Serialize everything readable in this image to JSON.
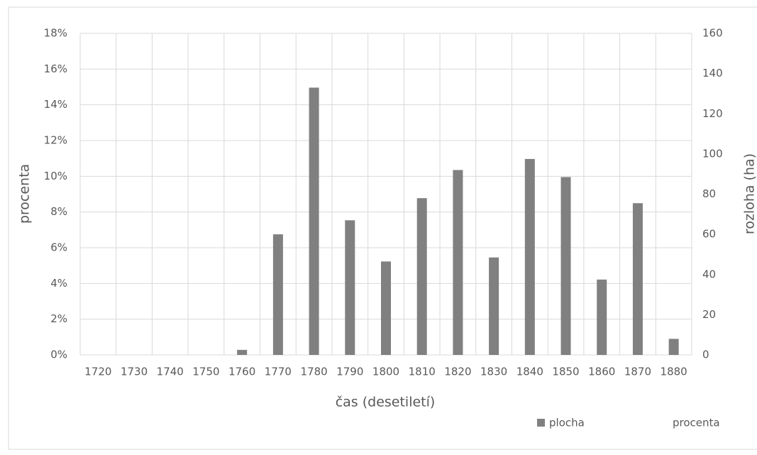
{
  "chart_data": {
    "type": "bar",
    "x_label": "čas (desetiletí)",
    "y_label": "procenta",
    "y2_label": "rozloha (ha)",
    "categories": [
      1720,
      1730,
      1740,
      1750,
      1760,
      1770,
      1780,
      1790,
      1800,
      1810,
      1820,
      1830,
      1840,
      1850,
      1860,
      1870,
      1880
    ],
    "series": [
      {
        "name": "plocha",
        "color": "#808080",
        "axis": "y2",
        "values": [
          0,
          0,
          0,
          0,
          2.5,
          60,
          133,
          67,
          46.5,
          78,
          92,
          48.5,
          97.5,
          88.5,
          37.5,
          75.5,
          8
        ]
      },
      {
        "name": "procenta",
        "values": [
          null,
          null,
          null,
          null,
          null,
          null,
          null,
          null,
          null,
          null,
          null,
          null,
          null,
          null,
          null,
          null,
          null
        ]
      }
    ],
    "ylim": [
      0,
      18
    ],
    "yticks": [
      {
        "value": 0,
        "label": "0%"
      },
      {
        "value": 2,
        "label": "2%"
      },
      {
        "value": 4,
        "label": "4%"
      },
      {
        "value": 6,
        "label": "6%"
      },
      {
        "value": 8,
        "label": "8%"
      },
      {
        "value": 10,
        "label": "10%"
      },
      {
        "value": 12,
        "label": "12%"
      },
      {
        "value": 14,
        "label": "14%"
      },
      {
        "value": 16,
        "label": "16%"
      },
      {
        "value": 18,
        "label": "18%"
      }
    ],
    "y2lim": [
      0,
      160
    ],
    "y2ticks": [
      0,
      20,
      40,
      60,
      80,
      100,
      120,
      140,
      160
    ],
    "grid": true,
    "legend": "bottom-right"
  }
}
